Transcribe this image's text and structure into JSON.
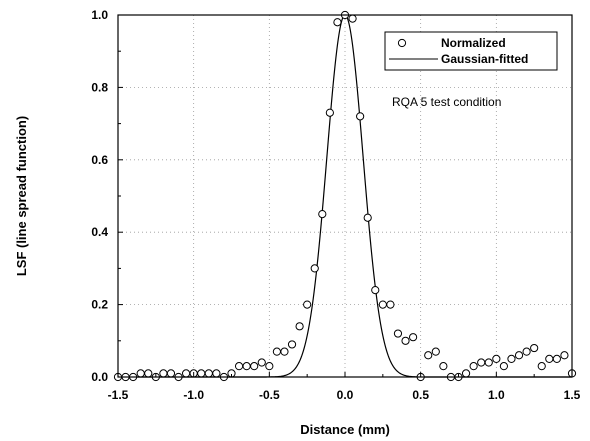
{
  "chart_data": {
    "type": "scatter",
    "xlabel": "Distance (mm)",
    "ylabel": "LSF (line spread function)",
    "xlim": [
      -1.5,
      1.5
    ],
    "ylim": [
      0,
      1.0
    ],
    "x_ticks": [
      "-1.5",
      "-1.0",
      "-0.5",
      "0.0",
      "0.5",
      "1.0",
      "1.5"
    ],
    "y_ticks": [
      "0.0",
      "0.2",
      "0.4",
      "0.6",
      "0.8",
      "1.0"
    ],
    "grid": "dotted",
    "legend_position": "top-right",
    "annotation": "RQA 5 test condition",
    "series": [
      {
        "name": "Normalized",
        "style": "open-circle",
        "color": "#000000",
        "x": [
          -1.5,
          -1.45,
          -1.4,
          -1.35,
          -1.3,
          -1.25,
          -1.2,
          -1.15,
          -1.1,
          -1.05,
          -1.0,
          -0.95,
          -0.9,
          -0.85,
          -0.8,
          -0.75,
          -0.7,
          -0.65,
          -0.6,
          -0.55,
          -0.5,
          -0.45,
          -0.4,
          -0.35,
          -0.3,
          -0.25,
          -0.2,
          -0.15,
          -0.1,
          -0.05,
          0.0,
          0.05,
          0.1,
          0.15,
          0.2,
          0.25,
          0.3,
          0.35,
          0.4,
          0.45,
          0.5,
          0.55,
          0.6,
          0.65,
          0.7,
          0.75,
          0.8,
          0.85,
          0.9,
          0.95,
          1.0,
          1.05,
          1.1,
          1.15,
          1.2,
          1.25,
          1.3,
          1.35,
          1.4,
          1.45,
          1.5
        ],
        "y": [
          0.0,
          0.0,
          0.0,
          0.01,
          0.01,
          0.0,
          0.01,
          0.01,
          0.0,
          0.01,
          0.01,
          0.01,
          0.01,
          0.01,
          0.0,
          0.01,
          0.03,
          0.03,
          0.03,
          0.04,
          0.03,
          0.07,
          0.07,
          0.09,
          0.14,
          0.2,
          0.3,
          0.45,
          0.73,
          0.98,
          1.0,
          0.99,
          0.72,
          0.44,
          0.24,
          0.2,
          0.2,
          0.12,
          0.1,
          0.11,
          0.0,
          0.06,
          0.07,
          0.03,
          0.0,
          0.0,
          0.01,
          0.03,
          0.04,
          0.04,
          0.05,
          0.03,
          0.05,
          0.06,
          0.07,
          0.08,
          0.03,
          0.05,
          0.05,
          0.06,
          0.01
        ]
      },
      {
        "name": "Gaussian-fitted",
        "style": "solid-line",
        "color": "#000000",
        "function": "gaussian",
        "amplitude": 1.0,
        "mean": 0.0,
        "sigma": 0.12
      }
    ]
  }
}
